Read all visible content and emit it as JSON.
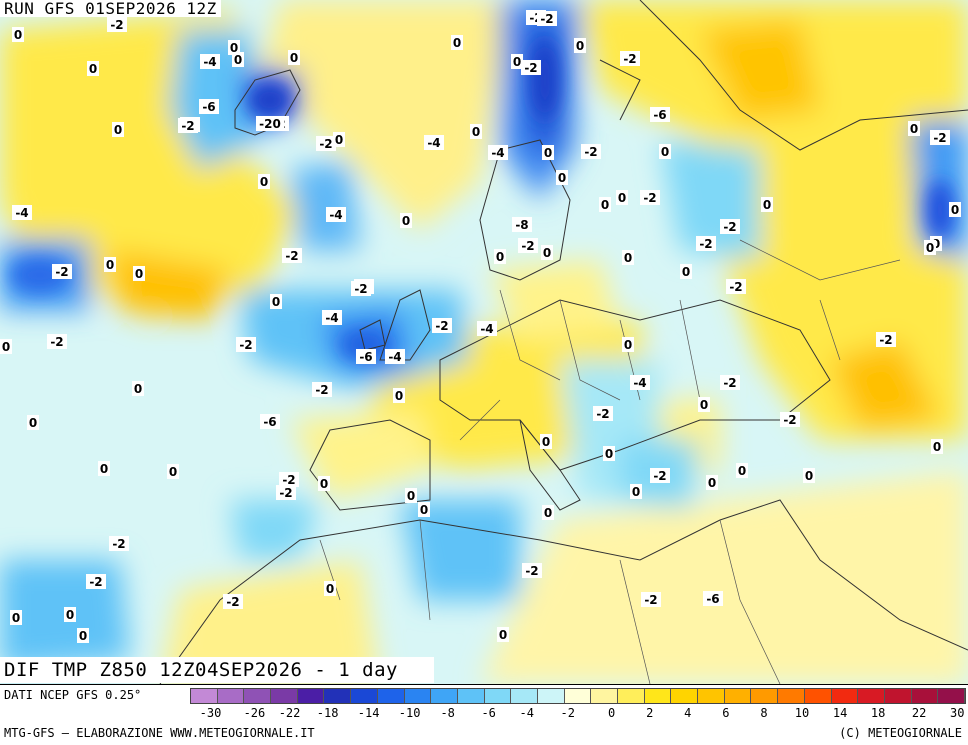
{
  "header": {
    "run_title": "RUN GFS 01SEP2026 12Z",
    "map_title": "DIF TMP Z850 12Z04SEP2026 - 1 day"
  },
  "legend": {
    "source": "DATI NCEP GFS 0.25°",
    "colors": [
      "#c389d6",
      "#a86cc6",
      "#8f52b5",
      "#7a3aa6",
      "#4b1ea6",
      "#2231b8",
      "#1a48d6",
      "#1e63ea",
      "#2a84f2",
      "#3fa5f6",
      "#5ec2f7",
      "#7fd8f7",
      "#a6e8f7",
      "#cdf5f8",
      "#ffffd8",
      "#fff5a0",
      "#ffee5a",
      "#ffe61a",
      "#ffd400",
      "#ffc400",
      "#ffb000",
      "#ff9a00",
      "#ff7a00",
      "#ff5200",
      "#f22a10",
      "#d81a24",
      "#c0142e",
      "#a8103a",
      "#94104a"
    ],
    "labels": [
      "-30",
      "-26",
      "-22",
      "-18",
      "-14",
      "-10",
      "-8",
      "-6",
      "-4",
      "-2",
      "0",
      "2",
      "4",
      "6",
      "8",
      "10",
      "14",
      "18",
      "22",
      "30"
    ]
  },
  "footer": {
    "left": "MTG-GFS – ELABORAZIONE WWW.METEOGIORNALE.IT",
    "right": "(C) METEOGIORNALE"
  },
  "map": {
    "field_labels": [
      "-2",
      "0",
      "0",
      "-2",
      "-4",
      "0",
      "0",
      "0",
      "0",
      "-6",
      "-2",
      "-2",
      "-20",
      "-2",
      "0",
      "-4",
      "-2",
      "0",
      "0",
      "-4",
      "0",
      "-2",
      "-2",
      "-4",
      "-6",
      "-4",
      "-2",
      "0",
      "0",
      "0",
      "0",
      "0",
      "-2",
      "0",
      "0",
      "-2",
      "-2",
      "0",
      "-2",
      "0",
      "-6",
      "-4",
      "-2",
      "0",
      "-2",
      "-4",
      "0",
      "-2",
      "0",
      "-2",
      "0",
      "-2",
      "-6",
      "-2",
      "-4",
      "0",
      "-2",
      "0",
      "0",
      "0",
      "-8",
      "-2",
      "0",
      "0",
      "0",
      "0",
      "-2",
      "-2",
      "0",
      "-2",
      "0",
      "-2",
      "0",
      "-2",
      "0",
      "0",
      "0",
      "-2",
      "-2",
      "0",
      "-4",
      "0",
      "-2",
      "0",
      "-2",
      "0",
      "0",
      "0",
      "0",
      "-2",
      "0",
      "0",
      "0",
      "0",
      "0",
      "-2",
      "0",
      "-2",
      "-2",
      "-2",
      "0",
      "0",
      "0",
      "0",
      "-2",
      "-6"
    ],
    "warm_color": "#ffe100",
    "cold_color": "#1e63ea"
  }
}
